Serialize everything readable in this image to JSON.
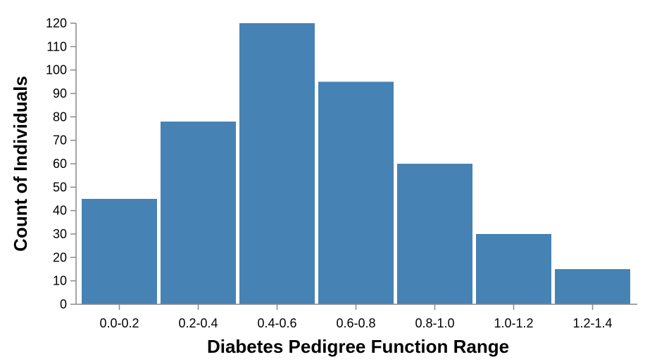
{
  "chart_data": {
    "type": "bar",
    "categories": [
      "0.0-0.2",
      "0.2-0.4",
      "0.4-0.6",
      "0.6-0.8",
      "0.8-1.0",
      "1.0-1.2",
      "1.2-1.4"
    ],
    "values": [
      45,
      78,
      120,
      95,
      60,
      30,
      15
    ],
    "title": "",
    "xlabel": "Diabetes Pedigree Function Range",
    "ylabel": "Count of Individuals",
    "ylim": [
      0,
      120
    ],
    "yticks": [
      "0",
      "10",
      "20",
      "30",
      "40",
      "50",
      "60",
      "70",
      "80",
      "90",
      "100",
      "110",
      "120"
    ],
    "grid": false,
    "legend": "none",
    "bar_color": "#4682b4",
    "axis_color": "#888888"
  }
}
